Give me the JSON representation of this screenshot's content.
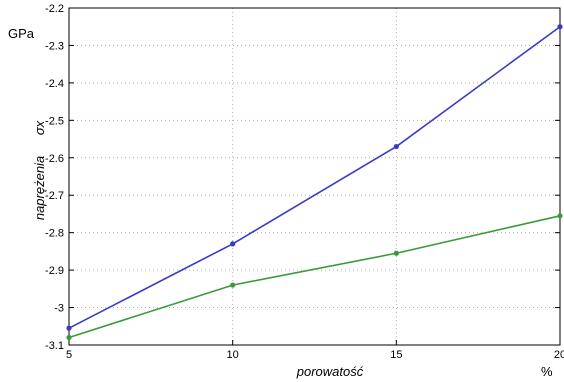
{
  "chart_data": {
    "type": "line",
    "unit_label": "GPa",
    "xlabel": "porowatość",
    "x_unit": "%",
    "ylabel": "naprężenia",
    "ylabel_symbol": "σx",
    "x": [
      5,
      10,
      15,
      20
    ],
    "xticks": [
      "5",
      "10",
      "15",
      "20"
    ],
    "xlim": [
      5,
      20
    ],
    "yticks": [
      "-2.2",
      "-2.3",
      "-2.4",
      "-2.5",
      "-2.6",
      "-2.7",
      "-2.8",
      "-2.9",
      "-3",
      "-3.1"
    ],
    "ylim": [
      -3.1,
      -2.2
    ],
    "grid": true,
    "series": [
      {
        "values": [
          -3.055,
          -2.83,
          -2.57,
          -2.25
        ],
        "color": "#3a3ac8"
      },
      {
        "values": [
          -3.08,
          -2.94,
          -2.855,
          -2.755
        ],
        "color": "#3a9a3a"
      }
    ]
  }
}
